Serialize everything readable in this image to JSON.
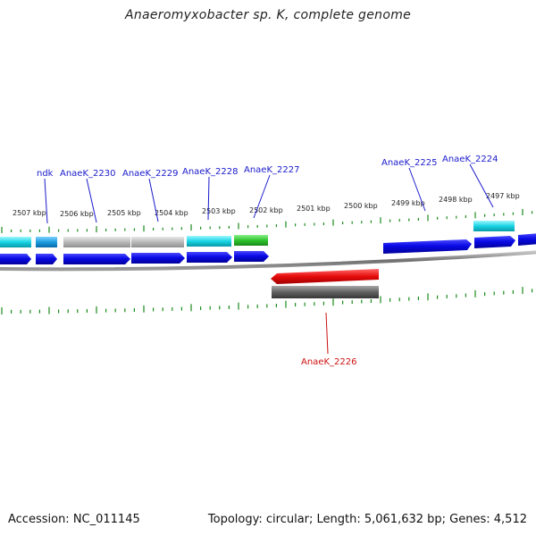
{
  "title": "Anaeromyxobacter sp. K, complete genome",
  "accession": "Accession: NC_011145",
  "summary": "Topology: circular; Length: 5,061,632 bp; Genes: 4,512",
  "colors": {
    "label_blue": "#1a1acc",
    "label_red": "#cc1111",
    "tick_green": "#1a8a1a",
    "gene_blue": "#0a0ae6",
    "gene_cyan": "#18c8d8",
    "gene_lightblue": "#1a9ce0",
    "gene_gray": "#b4b4b4",
    "gene_green": "#2ec42e",
    "gene_red": "#e60a0a",
    "gene_darkgray": "#606060",
    "backbone": "#8a8a8a"
  },
  "kbp_labels": [
    "2507 kbp",
    "2506 kbp",
    "2505 kbp",
    "2504 kbp",
    "2503 kbp",
    "2502 kbp",
    "2501 kbp",
    "2500 kbp",
    "2499 kbp",
    "2498 kbp",
    "2497 kbp"
  ],
  "gene_labels": [
    {
      "text": "ndk",
      "color": "label_blue"
    },
    {
      "text": "AnaeK_2230",
      "color": "label_blue"
    },
    {
      "text": "AnaeK_2229",
      "color": "label_blue"
    },
    {
      "text": "AnaeK_2228",
      "color": "label_blue"
    },
    {
      "text": "AnaeK_2227",
      "color": "label_blue"
    },
    {
      "text": "AnaeK_2225",
      "color": "label_blue"
    },
    {
      "text": "AnaeK_2224",
      "color": "label_blue"
    },
    {
      "text": "AnaeK_2226",
      "color": "label_red"
    }
  ]
}
